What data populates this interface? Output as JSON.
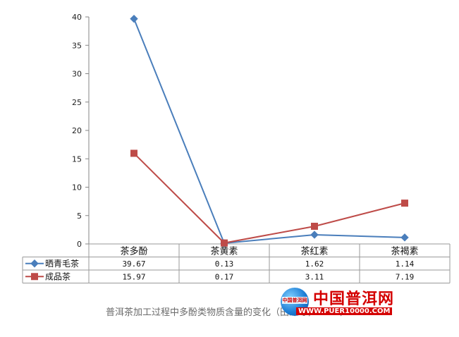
{
  "chart_data": {
    "type": "line",
    "categories": [
      "茶多酚",
      "茶黄素",
      "茶红素",
      "茶褐素"
    ],
    "ylim": [
      0,
      40
    ],
    "yticks": [
      0,
      5,
      10,
      15,
      20,
      25,
      30,
      35,
      40
    ],
    "grid": false,
    "legend_placement": "data-table-left",
    "series": [
      {
        "name": "晒青毛茶",
        "values": [
          39.67,
          0.13,
          1.62,
          1.14
        ],
        "labels": [
          "39.67",
          "0.13",
          "1.62",
          "1.14"
        ],
        "color": "#4a7ebb",
        "marker": "diamond"
      },
      {
        "name": "成品茶",
        "values": [
          15.97,
          0.17,
          3.11,
          7.19
        ],
        "labels": [
          "15.97",
          "0.17",
          "3.11",
          "7.19"
        ],
        "color": "#be4b48",
        "marker": "square"
      }
    ]
  },
  "caption": "普洱茶加工过程中多酚类物质含量的变化（田洋等，2010）",
  "watermark": {
    "title": "中国普洱网",
    "url": "WWW.PUER10000.COM",
    "globe_text": "中国普洱网"
  }
}
